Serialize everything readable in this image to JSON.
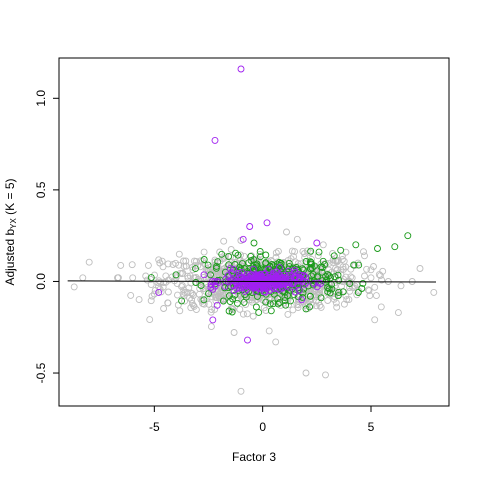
{
  "chart_data": {
    "type": "scatter",
    "title": "",
    "xlabel": "Factor 3",
    "ylabel": {
      "prefix": "Adjusted b",
      "subscript": "YX",
      "suffix": "  (K = 5)"
    },
    "xlim": [
      -9.4,
      8.6
    ],
    "ylim": [
      -0.68,
      1.22
    ],
    "x_ticks": [
      -5,
      0,
      5
    ],
    "y_ticks": [
      -0.5,
      0.0,
      0.5,
      1.0
    ],
    "x_tick_labels": [
      "-5",
      "0",
      "5"
    ],
    "y_tick_labels": [
      "-0.5",
      "0.0",
      "0.5",
      "1.0"
    ],
    "grid": false,
    "legend": "none",
    "colors": {
      "background_points": "#bebebe",
      "green_points": "#1a9a1a",
      "purple_points": "#a020f0",
      "trend_line": "#000000"
    },
    "trend_line": {
      "x": [
        -9.0,
        8.0
      ],
      "y": [
        0.003,
        -0.003
      ]
    },
    "series": [
      {
        "color": "grey",
        "cloud": {
          "n": 950,
          "center_x": 0.0,
          "center_y": 0.0,
          "sd_x": 2.3,
          "sd_y": 0.065
        },
        "points": [
          [
            -8.7,
            -0.03
          ],
          [
            -8.3,
            0.02
          ],
          [
            -6.0,
            0.02
          ],
          [
            -5.4,
            0.03
          ],
          [
            7.9,
            -0.06
          ],
          [
            6.9,
            0.0
          ],
          [
            5.8,
            0.0
          ],
          [
            5.0,
            0.02
          ],
          [
            -1.0,
            -0.6
          ],
          [
            2.0,
            -0.5
          ],
          [
            2.9,
            -0.51
          ],
          [
            0.3,
            -0.27
          ],
          [
            1.1,
            0.27
          ],
          [
            1.6,
            0.23
          ],
          [
            -1.8,
            0.22
          ],
          [
            2.8,
            0.2
          ],
          [
            -3.2,
            -0.13
          ],
          [
            -4.6,
            0.08
          ],
          [
            4.4,
            0.1
          ],
          [
            0.6,
            -0.33
          ]
        ]
      },
      {
        "color": "green",
        "cloud": {
          "n": 320,
          "center_x": 0.5,
          "center_y": 0.01,
          "sd_x": 1.5,
          "sd_y": 0.055
        },
        "points": [
          [
            6.7,
            0.25
          ],
          [
            6.1,
            0.19
          ],
          [
            5.3,
            0.18
          ],
          [
            4.3,
            0.2
          ],
          [
            3.6,
            0.17
          ],
          [
            4.2,
            0.09
          ],
          [
            3.3,
            0.14
          ],
          [
            2.6,
            0.16
          ],
          [
            0.4,
            -0.16
          ],
          [
            -1.5,
            -0.11
          ],
          [
            -2.7,
            0.12
          ],
          [
            -3.1,
            0.07
          ],
          [
            2.0,
            -0.15
          ],
          [
            3.5,
            -0.06
          ],
          [
            -0.4,
            0.21
          ]
        ]
      },
      {
        "color": "purple",
        "cloud": {
          "n": 280,
          "center_x": 0.0,
          "center_y": 0.0,
          "sd_x": 0.9,
          "sd_y": 0.025
        },
        "points": [
          [
            -1.0,
            1.16
          ],
          [
            -2.2,
            0.77
          ],
          [
            -0.6,
            0.3
          ],
          [
            0.2,
            0.32
          ],
          [
            -0.9,
            0.23
          ],
          [
            -0.7,
            -0.32
          ],
          [
            -2.3,
            -0.21
          ],
          [
            -2.1,
            -0.13
          ],
          [
            -4.8,
            -0.06
          ],
          [
            2.5,
            0.21
          ],
          [
            1.8,
            -0.1
          ],
          [
            -1.5,
            0.07
          ]
        ]
      }
    ]
  }
}
